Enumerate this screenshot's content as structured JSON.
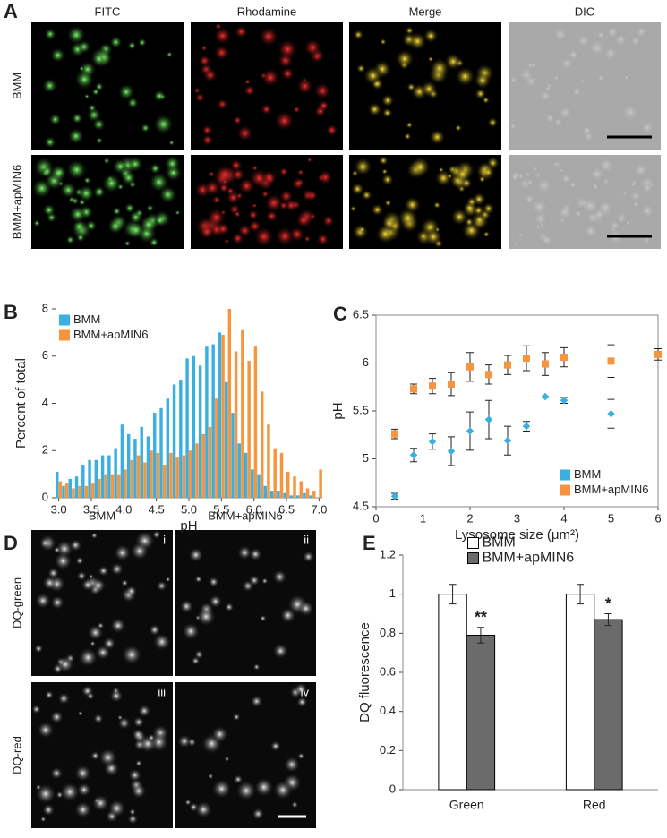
{
  "panel_a": {
    "letter": "A",
    "columns": [
      "FITC",
      "Rhodamine",
      "Merge",
      "DIC"
    ],
    "rows": [
      "BMM",
      "BMM+apMIN6"
    ]
  },
  "panel_d": {
    "letter": "D",
    "columns": [
      "BMM",
      "BMM+apMIN6"
    ],
    "rows": [
      "DQ-green",
      "DQ-red"
    ],
    "subpanels": [
      "i",
      "iii",
      "ii",
      "iv"
    ]
  },
  "chart_data": [
    {
      "type": "bar",
      "letter": "B",
      "xlabel": "pH",
      "ylabel": "Percent of total",
      "legend": "upper left",
      "x": [
        3.0,
        3.1,
        3.2,
        3.3,
        3.4,
        3.5,
        3.6,
        3.7,
        3.8,
        3.9,
        4.0,
        4.1,
        4.2,
        4.3,
        4.4,
        4.5,
        4.6,
        4.7,
        4.8,
        4.9,
        5.0,
        5.1,
        5.2,
        5.3,
        5.4,
        5.5,
        5.6,
        5.7,
        5.8,
        5.9,
        6.0,
        6.1,
        6.2,
        6.3,
        6.4,
        6.5,
        6.6,
        6.7,
        6.8,
        6.9,
        7.0
      ],
      "series": [
        {
          "name": "BMM",
          "color": "#3ab0e0",
          "values": [
            1.1,
            0.5,
            0.8,
            0.9,
            1.4,
            1.6,
            1.6,
            1.8,
            1.8,
            2.1,
            3.1,
            2.7,
            2.5,
            3.0,
            2.6,
            3.6,
            3.8,
            4.2,
            4.8,
            5.0,
            5.9,
            6.0,
            5.6,
            6.4,
            6.5,
            7.0,
            4.9,
            3.6,
            2.3,
            1.9,
            1.2,
            1.0,
            0.5,
            0.3,
            0.3,
            0.2,
            0.1,
            0.1,
            0.2,
            0.1,
            0
          ]
        },
        {
          "name": "BMM+apMIN6",
          "color": "#f7943d",
          "values": [
            0.7,
            0.6,
            0.4,
            0.5,
            0.5,
            0.6,
            0.8,
            1.0,
            1.0,
            1.0,
            1.2,
            1.6,
            1.8,
            1.5,
            2.0,
            1.9,
            1.4,
            1.9,
            1.7,
            1.8,
            2.0,
            2.3,
            2.7,
            3.0,
            4.2,
            6.9,
            8.0,
            6.2,
            7.1,
            5.8,
            6.4,
            4.5,
            3.1,
            2.1,
            1.9,
            1.1,
            0.9,
            0.7,
            0.4,
            0.3,
            1.2
          ]
        }
      ],
      "xlim": [
        2.95,
        7.05
      ],
      "xticks": [
        {
          "value": 3,
          "label": "3.0"
        },
        3.5,
        {
          "value": 4,
          "label": "4.0"
        },
        4.5,
        {
          "value": 5,
          "label": "5.0"
        },
        5.5,
        {
          "value": 6,
          "label": "6.0"
        },
        6.5,
        {
          "value": 7,
          "label": "7.0"
        }
      ],
      "ylim": [
        0,
        8
      ],
      "yticks": [
        0,
        2,
        4,
        6,
        8
      ]
    },
    {
      "type": "scatter",
      "letter": "C",
      "xlabel": "Lysosome size (μm²)",
      "ylabel": "pH",
      "legend": "lower right",
      "x": [
        0.4,
        0.8,
        1.2,
        1.6,
        2.0,
        2.4,
        2.8,
        3.2,
        3.6,
        4.0,
        5.0,
        6.0
      ],
      "series": [
        {
          "name": "BMM",
          "color": "#3ab0e0",
          "values": [
            4.61,
            5.04,
            5.18,
            5.08,
            5.29,
            5.41,
            5.19,
            5.34,
            5.65,
            5.61,
            5.47,
            null
          ],
          "errors": [
            0.03,
            0.07,
            0.08,
            0.15,
            0.2,
            0.2,
            0.15,
            0.05,
            0,
            0.03,
            0.15,
            null
          ]
        },
        {
          "name": "BMM+apMIN6",
          "color": "#f7943d",
          "values": [
            5.26,
            5.73,
            5.76,
            5.78,
            5.96,
            5.88,
            5.98,
            6.05,
            5.99,
            6.06,
            6.02,
            6.09
          ],
          "errors": [
            0.05,
            0.05,
            0.08,
            0.12,
            0.15,
            0.1,
            0.1,
            0.13,
            0.12,
            0.1,
            0.17,
            0.06
          ]
        }
      ],
      "xlim": [
        0,
        6
      ],
      "xticks": [
        0,
        1,
        2,
        3,
        4,
        5,
        6
      ],
      "ylim": [
        4.5,
        6.5
      ],
      "yticks": [
        4.5,
        5,
        5.5,
        6,
        6.5
      ]
    },
    {
      "type": "bar",
      "letter": "E",
      "ylabel": "DQ fluorescence",
      "legend": "upper center",
      "categories": [
        "Green",
        "Red"
      ],
      "series": [
        {
          "name": "BMM",
          "color": "#ffffff",
          "values": [
            1.0,
            1.0
          ],
          "errors": [
            0.05,
            0.05
          ]
        },
        {
          "name": "BMM+apMIN6",
          "color": "#6b6b6b",
          "values": [
            0.79,
            0.87
          ],
          "errors": [
            0.04,
            0.03
          ],
          "annotations": [
            "**",
            "*"
          ]
        }
      ],
      "ylim": [
        0,
        1.2
      ],
      "yticks": [
        0,
        0.2,
        0.4,
        0.6,
        0.8,
        1,
        1.2
      ]
    }
  ]
}
